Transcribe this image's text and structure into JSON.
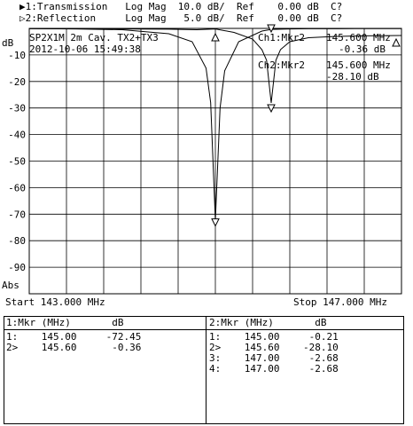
{
  "header": {
    "ch1_line": "▶1:Transmission   Log Mag  10.0 dB/  Ref    0.00 dB  C?",
    "ch2_line": "▷2:Reflection     Log Mag   5.0 dB/  Ref    0.00 dB  C?"
  },
  "chart_info": {
    "title": "SP2X1M 2m Cav. TX2+TX3",
    "datetime": "2012-10-06 15:49:38",
    "y_unit": "dB",
    "y_abs": "Abs",
    "y_ticks": [
      "-10",
      "-20",
      "-30",
      "-40",
      "-50",
      "-60",
      "-70",
      "-80",
      "-90"
    ],
    "ch1_label": "Ch1:Mkr2",
    "ch1_freq": "145.600 MHz",
    "ch1_val": "-0.36 dB",
    "ch2_label": "Ch2:Mkr2",
    "ch2_freq": "145.600 MHz",
    "ch2_val": "-28.10 dB",
    "start": "Start 143.000 MHz",
    "stop": "Stop 147.000 MHz"
  },
  "chart_data": {
    "type": "line",
    "xlim": [
      143.0,
      147.0
    ],
    "ylim": [
      -100,
      0
    ],
    "series": [
      {
        "name": "Transmission",
        "x": [
          143.0,
          143.5,
          144.0,
          144.5,
          144.75,
          144.9,
          144.95,
          145.0,
          145.05,
          145.1,
          145.25,
          145.5,
          145.6,
          145.8,
          146.0,
          146.5,
          147.0
        ],
        "y": [
          -0.1,
          -0.2,
          -0.5,
          -2,
          -5,
          -15,
          -28,
          -72.45,
          -30,
          -16,
          -5,
          -1,
          -0.36,
          -0.2,
          -0.15,
          -0.1,
          -0.1
        ]
      },
      {
        "name": "Reflection",
        "x": [
          143.0,
          144.0,
          144.5,
          144.8,
          145.0,
          145.2,
          145.4,
          145.5,
          145.55,
          145.6,
          145.65,
          145.7,
          145.8,
          146.0,
          146.3,
          146.6,
          147.0
        ],
        "y": [
          -0.1,
          -0.2,
          -0.3,
          -0.5,
          -0.21,
          -1.5,
          -4,
          -8,
          -12,
          -28.1,
          -12,
          -8,
          -5,
          -3.5,
          -3,
          -2.8,
          -2.68
        ]
      }
    ]
  },
  "markers_ch1": {
    "header": "1:Mkr (MHz)       dB",
    "rows": [
      "1:    145.00     -72.45",
      "2>    145.60      -0.36"
    ]
  },
  "markers_ch2": {
    "header": "2:Mkr (MHz)       dB",
    "rows": [
      "1:    145.00     -0.21",
      "2>    145.60    -28.10",
      "3:    147.00     -2.68",
      "4:    147.00     -2.68"
    ]
  }
}
